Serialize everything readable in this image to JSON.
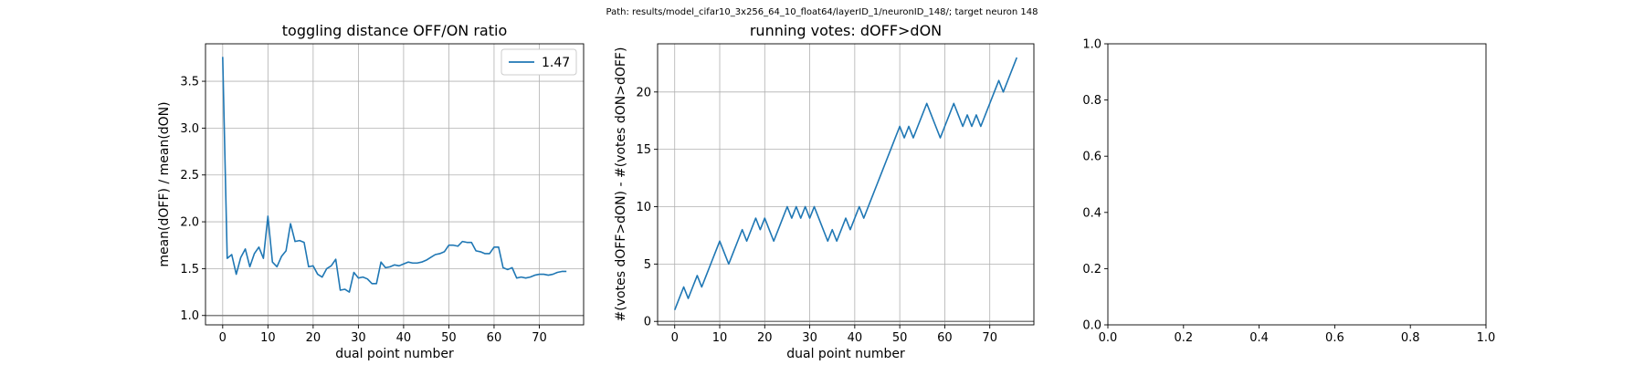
{
  "figure": {
    "suptitle": "Path: results/model_cifar10_3x256_64_10_float64/layerID_1/neuronID_148/; target neuron 148"
  },
  "colors": {
    "series": "#1f77b4",
    "grid": "#b0b0b0",
    "hline": "#808080"
  },
  "chart_data": [
    {
      "type": "line",
      "title": "toggling distance OFF/ON ratio",
      "xlabel": "dual point number",
      "ylabel": "mean(dOFF) / mean(dON)",
      "xlim": [
        -3.8,
        79.8
      ],
      "ylim": [
        0.9,
        3.9
      ],
      "xticks": [
        0,
        10,
        20,
        30,
        40,
        50,
        60,
        70
      ],
      "yticks": [
        1.0,
        1.5,
        2.0,
        2.5,
        3.0,
        3.5
      ],
      "ytick_labels": [
        "1.0",
        "1.5",
        "2.0",
        "2.5",
        "3.0",
        "3.5"
      ],
      "grid": true,
      "legend": {
        "position": "top-right",
        "entries": [
          "1.47"
        ]
      },
      "hline": 1.0,
      "series": [
        {
          "name": "1.47",
          "x": [
            0,
            1,
            2,
            3,
            4,
            5,
            6,
            7,
            8,
            9,
            10,
            11,
            12,
            13,
            14,
            15,
            16,
            17,
            18,
            19,
            20,
            21,
            22,
            23,
            24,
            25,
            26,
            27,
            28,
            29,
            30,
            31,
            32,
            33,
            34,
            35,
            36,
            37,
            38,
            39,
            40,
            41,
            42,
            43,
            44,
            45,
            46,
            47,
            48,
            49,
            50,
            51,
            52,
            53,
            54,
            55,
            56,
            57,
            58,
            59,
            60,
            61,
            62,
            63,
            64,
            65,
            66,
            67,
            68,
            69,
            70,
            71,
            72,
            73,
            74,
            75,
            76
          ],
          "y": [
            3.76,
            1.61,
            1.65,
            1.44,
            1.62,
            1.71,
            1.52,
            1.66,
            1.73,
            1.61,
            2.06,
            1.57,
            1.52,
            1.63,
            1.69,
            1.98,
            1.79,
            1.8,
            1.78,
            1.52,
            1.53,
            1.44,
            1.41,
            1.5,
            1.53,
            1.6,
            1.27,
            1.28,
            1.25,
            1.46,
            1.4,
            1.41,
            1.39,
            1.34,
            1.34,
            1.57,
            1.51,
            1.52,
            1.54,
            1.53,
            1.55,
            1.57,
            1.56,
            1.56,
            1.57,
            1.59,
            1.62,
            1.65,
            1.66,
            1.68,
            1.75,
            1.75,
            1.74,
            1.79,
            1.78,
            1.78,
            1.69,
            1.68,
            1.66,
            1.66,
            1.73,
            1.73,
            1.51,
            1.49,
            1.51,
            1.4,
            1.41,
            1.4,
            1.41,
            1.43,
            1.44,
            1.44,
            1.43,
            1.44,
            1.46,
            1.47,
            1.47
          ]
        }
      ]
    },
    {
      "type": "line",
      "title": "running votes: dOFF>dON",
      "xlabel": "dual point number",
      "ylabel": "#(votes dOFF>dON) - #(votes dON>dOFF)",
      "xlim": [
        -3.8,
        79.8
      ],
      "ylim": [
        -0.3,
        24.2
      ],
      "xticks": [
        0,
        10,
        20,
        30,
        40,
        50,
        60,
        70
      ],
      "yticks": [
        0,
        5,
        10,
        15,
        20
      ],
      "ytick_labels": [
        "0",
        "5",
        "10",
        "15",
        "20"
      ],
      "grid": true,
      "hline": 0,
      "series": [
        {
          "x": [
            0,
            1,
            2,
            3,
            4,
            5,
            6,
            7,
            8,
            9,
            10,
            11,
            12,
            13,
            14,
            15,
            16,
            17,
            18,
            19,
            20,
            21,
            22,
            23,
            24,
            25,
            26,
            27,
            28,
            29,
            30,
            31,
            32,
            33,
            34,
            35,
            36,
            37,
            38,
            39,
            40,
            41,
            42,
            43,
            44,
            45,
            46,
            47,
            48,
            49,
            50,
            51,
            52,
            53,
            54,
            55,
            56,
            57,
            58,
            59,
            60,
            61,
            62,
            63,
            64,
            65,
            66,
            67,
            68,
            69,
            70,
            71,
            72,
            73,
            74,
            75,
            76
          ],
          "y": [
            1,
            2,
            3,
            2,
            3,
            4,
            3,
            4,
            5,
            6,
            7,
            6,
            5,
            6,
            7,
            8,
            7,
            8,
            9,
            8,
            9,
            8,
            7,
            8,
            9,
            10,
            9,
            10,
            9,
            10,
            9,
            10,
            9,
            8,
            7,
            8,
            7,
            8,
            9,
            8,
            9,
            10,
            9,
            10,
            11,
            12,
            13,
            14,
            15,
            16,
            17,
            16,
            17,
            16,
            17,
            18,
            19,
            18,
            17,
            16,
            17,
            18,
            19,
            18,
            17,
            18,
            17,
            18,
            17,
            18,
            19,
            20,
            21,
            20,
            21,
            22,
            23
          ]
        }
      ]
    },
    {
      "type": "line",
      "title": "",
      "xlabel": "",
      "ylabel": "",
      "xlim": [
        0,
        1
      ],
      "ylim": [
        0,
        1
      ],
      "xticks": [
        0.0,
        0.2,
        0.4,
        0.6,
        0.8,
        1.0
      ],
      "xtick_labels": [
        "0.0",
        "0.2",
        "0.4",
        "0.6",
        "0.8",
        "1.0"
      ],
      "yticks": [
        0.0,
        0.2,
        0.4,
        0.6,
        0.8,
        1.0
      ],
      "ytick_labels": [
        "0.0",
        "0.2",
        "0.4",
        "0.6",
        "0.8",
        "1.0"
      ],
      "grid": false,
      "series": []
    }
  ]
}
